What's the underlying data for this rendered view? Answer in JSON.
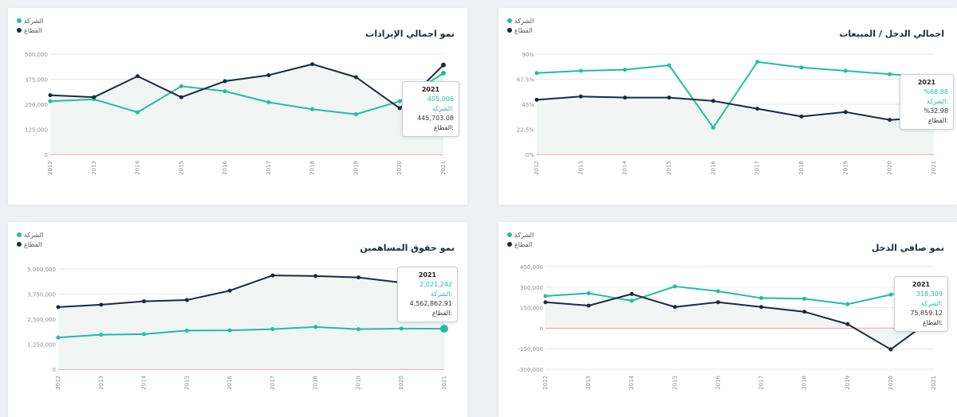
{
  "colors": {
    "company": "#1fbf9c",
    "sector": "#1b2a3d",
    "zero_line": "#e05a5a",
    "grid": "#e6e9ed",
    "area": "#f1f5f4"
  },
  "legend": {
    "company": "الشركة",
    "sector": "القطاع"
  },
  "tooltip_labels": {
    "company": "الشركة:",
    "sector": "القطاع:"
  },
  "chart_data": [
    {
      "id": "revenue",
      "type": "line",
      "title": "نمو اجمالي الإيرادات",
      "x": [
        "2012",
        "2013",
        "2014",
        "2015",
        "2016",
        "2017",
        "2018",
        "2019",
        "2020",
        "2021"
      ],
      "ylim": [
        0,
        500000
      ],
      "yticks": [
        "500,000",
        "375,000",
        "250,000",
        "125,000",
        "0"
      ],
      "series": [
        {
          "name": "الشركة",
          "values": [
            265000,
            275000,
            210000,
            340000,
            315000,
            260000,
            225000,
            200000,
            265000,
            405006
          ]
        },
        {
          "name": "القطاع",
          "values": [
            295000,
            285000,
            390000,
            285000,
            365000,
            395000,
            450000,
            385000,
            230000,
            445703
          ]
        }
      ],
      "tooltip": {
        "year": "2021",
        "company": "405,006",
        "sector": "445,703.08"
      }
    },
    {
      "id": "income_sales",
      "type": "line",
      "title": "اجمالي الدخل / المبيعات",
      "x": [
        "2012",
        "2013",
        "2014",
        "2015",
        "2016",
        "2017",
        "2018",
        "2019",
        "2020",
        "2021"
      ],
      "ylim": [
        0,
        90
      ],
      "yticks": [
        "90%",
        "67.5%",
        "45%",
        "22.5%",
        "0%"
      ],
      "series": [
        {
          "name": "الشركة",
          "values": [
            73,
            75,
            76,
            80,
            24,
            83,
            78,
            75,
            72,
            68.88
          ]
        },
        {
          "name": "القطاع",
          "values": [
            49,
            52,
            51,
            51,
            48,
            41,
            34,
            38,
            31,
            32.98
          ]
        }
      ],
      "tooltip": {
        "year": "2021",
        "company": "%68.88",
        "sector": "%32.98"
      }
    },
    {
      "id": "equity",
      "type": "line",
      "title": "نمو حقوق المساهمين",
      "x": [
        "2012",
        "2013",
        "2014",
        "2015",
        "2016",
        "2017",
        "2018",
        "2019",
        "2020",
        "2021"
      ],
      "ylim": [
        0,
        5000000
      ],
      "yticks": [
        "5,000,000",
        "3,750,000",
        "2,500,000",
        "1,250,000",
        "0"
      ],
      "series": [
        {
          "name": "الشركة",
          "values": [
            1580000,
            1720000,
            1750000,
            1930000,
            1940000,
            2000000,
            2110000,
            2000000,
            2030000,
            2021242
          ]
        },
        {
          "name": "القطاع",
          "values": [
            3100000,
            3220000,
            3390000,
            3450000,
            3920000,
            4680000,
            4650000,
            4580000,
            4320000,
            4562862
          ]
        }
      ],
      "tooltip": {
        "year": "2021",
        "company": "2,021,242",
        "sector": "4,562,862.91"
      }
    },
    {
      "id": "net_income",
      "type": "line",
      "title": "نمو صافي الدخل",
      "x": [
        "2012",
        "2013",
        "2014",
        "2015",
        "2016",
        "2017",
        "2018",
        "2019",
        "2020",
        "2021"
      ],
      "ylim": [
        -300000,
        450000
      ],
      "yticks": [
        "450,000",
        "300,000",
        "150,000",
        "0",
        "-150,000",
        "-300,000"
      ],
      "series": [
        {
          "name": "الشركة",
          "values": [
            235000,
            255000,
            200000,
            305000,
            270000,
            220000,
            215000,
            175000,
            245000,
            318309
          ]
        },
        {
          "name": "القطاع",
          "values": [
            190000,
            165000,
            250000,
            155000,
            190000,
            155000,
            120000,
            30000,
            -155000,
            75859
          ]
        }
      ],
      "tooltip": {
        "year": "2021",
        "company": "318,309",
        "sector": "75,859.12"
      }
    }
  ]
}
